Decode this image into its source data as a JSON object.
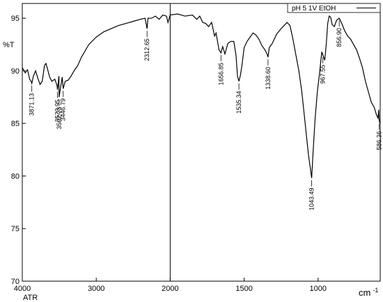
{
  "chart_data": {
    "type": "line",
    "y_label": "%T",
    "x_label": "cm",
    "x_label_sup": "-1",
    "x_sublabel": "ATR",
    "xlim": [
      4000,
      580
    ],
    "x_break": 2000,
    "xticks": [
      4000,
      3000,
      2000,
      1500,
      1000
    ],
    "ylim": [
      70,
      96.4
    ],
    "yticks": [
      70,
      75,
      80,
      85,
      90,
      95
    ],
    "legend": "upper right",
    "x": [
      4000,
      3960,
      3930,
      3900,
      3880,
      3871.13,
      3850,
      3820,
      3790,
      3760,
      3730,
      3700,
      3680,
      3660,
      3630,
      3600,
      3560,
      3530,
      3523.95,
      3505,
      3502.73,
      3480,
      3460,
      3446.79,
      3420,
      3380,
      3340,
      3300,
      3250,
      3200,
      3100,
      3000,
      2900,
      2800,
      2700,
      2600,
      2500,
      2400,
      2340,
      2320,
      2312.65,
      2300,
      2250,
      2200,
      2150,
      2100,
      2050,
      2030,
      2000,
      1950,
      1900,
      1850,
      1820,
      1800,
      1780,
      1760,
      1740,
      1720,
      1700,
      1690,
      1670,
      1656.85,
      1645,
      1630,
      1610,
      1590,
      1570,
      1555,
      1545,
      1535.34,
      1525,
      1515,
      1500,
      1480,
      1460,
      1440,
      1420,
      1400,
      1380,
      1360,
      1345,
      1338.6,
      1330,
      1310,
      1280,
      1250,
      1230,
      1210,
      1190,
      1170,
      1150,
      1130,
      1110,
      1095,
      1080,
      1065,
      1050,
      1043.49,
      1035,
      1020,
      1005,
      990,
      975,
      967.55,
      955,
      945,
      935,
      925,
      915,
      905,
      890,
      875,
      856.9,
      840,
      820,
      800,
      780,
      760,
      740,
      720,
      700,
      680,
      660,
      640,
      620,
      605,
      595,
      590,
      586.36,
      580
    ],
    "series": [
      {
        "name": "pH 5 1V EtOH",
        "color": "#000000",
        "values": [
          90.3,
          89.8,
          90.1,
          89.2,
          89.0,
          88.8,
          89.5,
          90.0,
          89.3,
          88.7,
          89.0,
          90.5,
          90.7,
          90.2,
          89.4,
          89.0,
          89.2,
          88.6,
          88.2,
          89.5,
          87.5,
          88.5,
          89.4,
          88.3,
          89.0,
          89.1,
          89.5,
          90.0,
          90.5,
          91.3,
          92.5,
          93.2,
          93.7,
          94.0,
          94.3,
          94.5,
          94.7,
          94.9,
          95.0,
          94.3,
          94.0,
          95.0,
          95.0,
          95.2,
          94.9,
          95.3,
          95.2,
          94.6,
          95.3,
          95.4,
          95.2,
          95.3,
          94.9,
          95.2,
          94.6,
          94.5,
          94.2,
          94.6,
          93.3,
          93.6,
          92.0,
          91.7,
          92.3,
          91.6,
          92.6,
          92.8,
          92.8,
          91.5,
          89.5,
          89.0,
          89.6,
          90.5,
          92.2,
          92.8,
          93.2,
          93.6,
          93.4,
          93.0,
          92.4,
          92.0,
          91.6,
          91.3,
          92.2,
          92.6,
          93.5,
          94.0,
          94.3,
          94.6,
          94.3,
          93.0,
          91.5,
          90.0,
          88.0,
          86.0,
          84.0,
          82.0,
          80.5,
          79.8,
          82.0,
          85.5,
          88.0,
          89.8,
          91.8,
          91.5,
          91.0,
          92.5,
          94.5,
          95.2,
          95.1,
          94.4,
          94.2,
          94.8,
          95.0,
          94.5,
          93.8,
          93.3,
          93.0,
          92.5,
          92.0,
          91.2,
          90.3,
          89.0,
          88.0,
          87.0,
          86.5,
          85.8,
          85.5,
          86.3,
          85.2,
          85.0
        ]
      }
    ],
    "peaks": [
      {
        "value": 3871.13,
        "label": "3871.13"
      },
      {
        "value": 3523.95,
        "label": "3523.95"
      },
      {
        "value": 3502.73,
        "label": "3502.73"
      },
      {
        "value": 3446.79,
        "label": "3446.79"
      },
      {
        "value": 2312.65,
        "label": "2312.65"
      },
      {
        "value": 1656.85,
        "label": "1656.85"
      },
      {
        "value": 1535.34,
        "label": "1535.34"
      },
      {
        "value": 1338.6,
        "label": "1338.60"
      },
      {
        "value": 1043.49,
        "label": "1043.49"
      },
      {
        "value": 967.55,
        "label": "967.55"
      },
      {
        "value": 856.9,
        "label": "856.90"
      },
      {
        "value": 586.36,
        "label": "586.36"
      }
    ]
  }
}
